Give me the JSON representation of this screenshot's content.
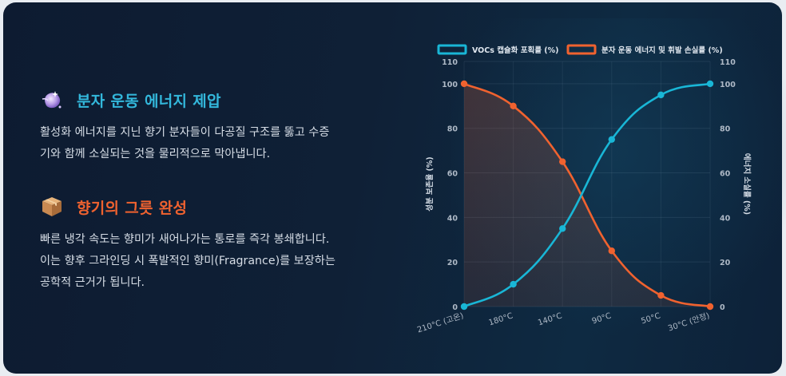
{
  "sections": [
    {
      "icon": "purple-sparkle-orb-icon",
      "title": "분자 운동 에너지 제압",
      "body_line1": "활성화 에너지를 지닌 향기 분자들이 다공질 구조를 뚫고 수증",
      "body_line2": "기와 함께 소실되는 것을 물리적으로 막아냅니다."
    },
    {
      "icon": "package-box-icon",
      "title": "향기의 그릇 완성",
      "body_line1": "빠른 냉각 속도는 향미가 새어나가는 통로를 즉각 봉쇄합니다.",
      "body_line2": "이는 향후 그라인딩 시 폭발적인 향미(Fragrance)를 보장하는",
      "body_line3": "공학적 근거가 됩니다."
    }
  ],
  "colors": {
    "accent_cyan": "#19b6d6",
    "accent_orange": "#f0622f",
    "background": "#0f1f35"
  },
  "chart_data": {
    "type": "line",
    "categories": [
      "210°C (고온)",
      "180°C",
      "140°C",
      "90°C",
      "50°C",
      "30°C (안정)"
    ],
    "series": [
      {
        "name": "VOCs 캡슐화 포획률 (%)",
        "values": [
          0,
          10,
          35,
          75,
          95,
          100
        ],
        "color": "#19b6d6",
        "axis": "left"
      },
      {
        "name": "분자 운동 에너지 및 휘발 손실률 (%)",
        "values": [
          100,
          90,
          65,
          25,
          5,
          0
        ],
        "color": "#f0622f",
        "axis": "right",
        "filled": true
      }
    ],
    "ylabel": "성분 보존율 (%)",
    "y2label": "에너지 소실률 (%)",
    "ylim": [
      0,
      110
    ],
    "yticks": [
      0,
      20,
      40,
      60,
      80,
      100,
      110
    ],
    "legend": "top",
    "grid": true
  }
}
